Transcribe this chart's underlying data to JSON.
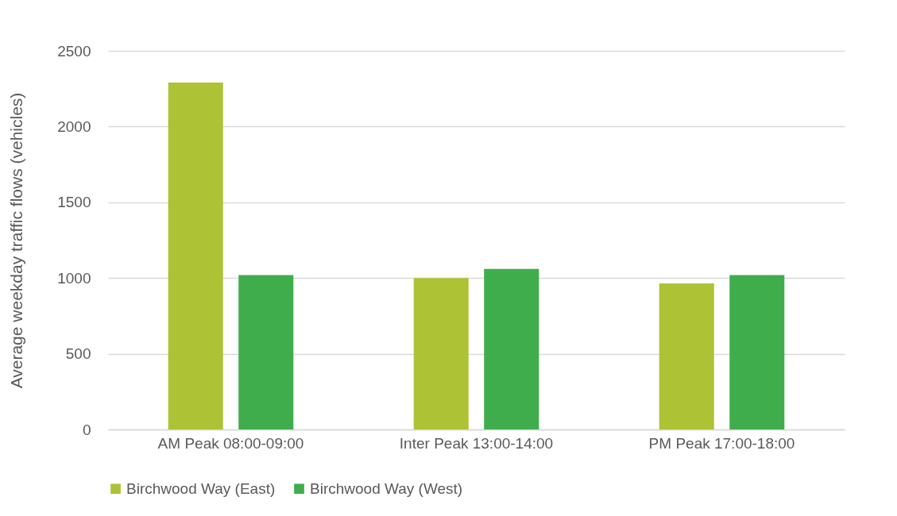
{
  "chart_data": {
    "type": "bar",
    "ylabel": "Average weekday  traffic flows (vehicles)",
    "categories": [
      "AM Peak 08:00-09:00",
      "Inter Peak 13:00-14:00",
      "PM Peak 17:00-18:00"
    ],
    "series": [
      {
        "name": "Birchwood Way (East)",
        "color": "#adc235",
        "values": [
          2290,
          1000,
          965
        ]
      },
      {
        "name": "Birchwood Way (West)",
        "color": "#3fad4c",
        "values": [
          1020,
          1060,
          1020
        ]
      }
    ],
    "ylim": [
      0,
      2500
    ],
    "yticks": [
      0,
      500,
      1000,
      1500,
      2000,
      2500
    ],
    "grid": "y",
    "legend": "bottom"
  }
}
